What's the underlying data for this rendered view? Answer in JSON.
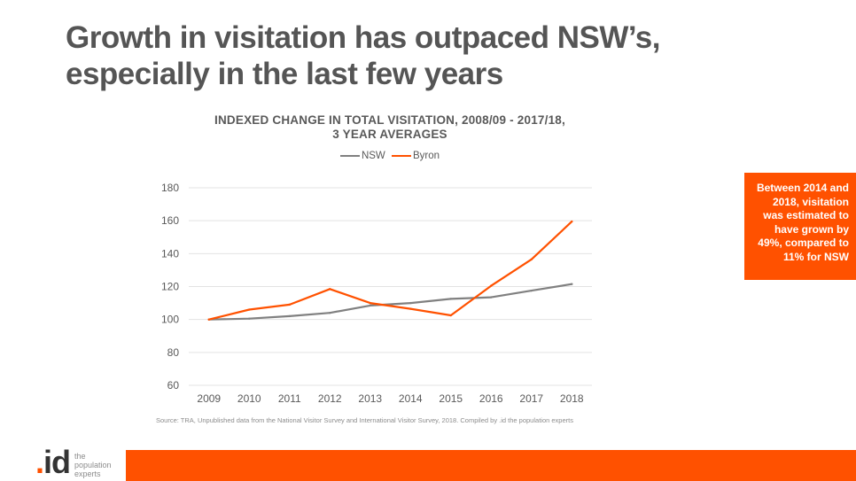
{
  "slide": {
    "title_line1": "Growth in visitation has outpaced NSW’s,",
    "title_line2": "especially in the last few years"
  },
  "callout": {
    "text": "Between 2014 and 2018, visitation was estimated to have grown by 49%, compared to 11% for NSW"
  },
  "source": "Source: TRA, Unpublished data from the National Visitor Survey and International Visitor Survey, 2018. Compiled by .id the population experts",
  "logo": {
    "mark": "id",
    "tag_line1": "the",
    "tag_line2": "population",
    "tag_line3": "experts"
  },
  "colors": {
    "nsw": "#808080",
    "byron": "#FF5100",
    "accent": "#FF5100"
  },
  "chart_data": {
    "type": "line",
    "title_line1": "INDEXED CHANGE IN TOTAL VISITATION, 2008/09 - 2017/18,",
    "title_line2": "3 YEAR AVERAGES",
    "categories": [
      "2009",
      "2010",
      "2011",
      "2012",
      "2013",
      "2014",
      "2015",
      "2016",
      "2017",
      "2018"
    ],
    "series": [
      {
        "name": "NSW",
        "color": "#808080",
        "values": [
          100,
          100.5,
          102,
          104,
          108.5,
          110,
          112.5,
          113.5,
          117.5,
          121.5
        ]
      },
      {
        "name": "Byron",
        "color": "#FF5100",
        "values": [
          100,
          106,
          109,
          118.5,
          110,
          106.5,
          102.5,
          120.5,
          136.5,
          159.5
        ]
      }
    ],
    "ylim": [
      60,
      180
    ],
    "yticks": [
      "60",
      "80",
      "100",
      "120",
      "140",
      "160",
      "180"
    ],
    "grid": true,
    "legend_position": "top"
  }
}
